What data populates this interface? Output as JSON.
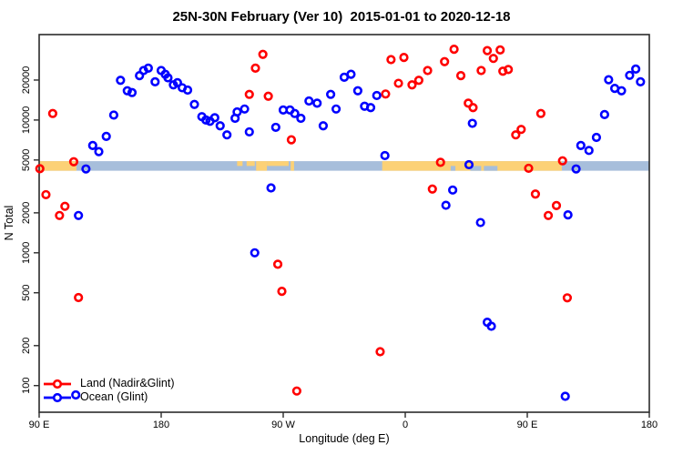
{
  "title": "25N-30N February (Ver 10)  2015-01-01 to 2020-12-18",
  "chart_data": {
    "type": "scatter",
    "title": "25N-30N February (Ver 10)  2015-01-01 to 2020-12-18",
    "x_axis": {
      "label": "Longitude (deg E)",
      "range": [
        90,
        540
      ],
      "ticks": [
        {
          "lon": 90,
          "label": "90 E"
        },
        {
          "lon": 180,
          "label": "180"
        },
        {
          "lon": 270,
          "label": "90 W"
        },
        {
          "lon": 360,
          "label": "0"
        },
        {
          "lon": 450,
          "label": "90 E"
        },
        {
          "lon": 540,
          "label": "180"
        }
      ]
    },
    "y_axis": {
      "label": "N Total",
      "scale": "log",
      "range": [
        63,
        44000
      ],
      "ticks": [
        {
          "value": 20000,
          "label": "20000"
        },
        {
          "value": 10000,
          "label": "10000"
        },
        {
          "value": 5000,
          "label": "5000"
        },
        {
          "value": 2000,
          "label": "2000"
        },
        {
          "value": 1000,
          "label": "1000"
        },
        {
          "value": 500,
          "label": "500"
        },
        {
          "value": 200,
          "label": "200"
        },
        {
          "value": 100,
          "label": "100"
        }
      ]
    },
    "legend": [
      {
        "name": "Land (Nadir&Glint)",
        "color": "#ff0000"
      },
      {
        "name": "Ocean (Glint)",
        "color": "#0000ff"
      }
    ],
    "map_band": {
      "description": "latitude-zone map strip drawn across the plot near N=4500",
      "top_value": 4900,
      "bottom_value": 4150,
      "ocean_color": "#a7bedb",
      "land_color": "#fcd176",
      "ocean_extent": [
        90,
        540
      ],
      "land_full": [
        [
          90,
          117.5
        ],
        [
          250,
          258
        ],
        [
          275.5,
          278
        ],
        [
          343,
          475.5
        ]
      ],
      "land_top_half": [
        [
          236,
          240
        ],
        [
          243,
          249
        ],
        [
          258,
          274
        ]
      ],
      "ocean_bottom_half_overlay": [
        [
          393.5,
          397
        ],
        [
          408,
          416
        ],
        [
          418,
          428
        ]
      ]
    },
    "series": [
      {
        "name": "Land (Nadir&Glint)",
        "color": "#ff0000",
        "points": [
          [
            100,
            11200
          ],
          [
            90.5,
            4300
          ],
          [
            115.5,
            4850
          ],
          [
            95,
            2740
          ],
          [
            109,
            2240
          ],
          [
            105,
            1910
          ],
          [
            119,
            460
          ],
          [
            255,
            31200
          ],
          [
            249.5,
            24600
          ],
          [
            245,
            15600
          ],
          [
            259,
            15100
          ],
          [
            276,
            7100
          ],
          [
            349.5,
            28500
          ],
          [
            359,
            29600
          ],
          [
            376.5,
            23600
          ],
          [
            370,
            19900
          ],
          [
            365,
            18400
          ],
          [
            355,
            18900
          ],
          [
            345.5,
            15700
          ],
          [
            389,
            27500
          ],
          [
            386,
            4800
          ],
          [
            380,
            3020
          ],
          [
            396,
            34100
          ],
          [
            420.5,
            33300
          ],
          [
            430,
            33700
          ],
          [
            425,
            29100
          ],
          [
            416,
            23600
          ],
          [
            401,
            21600
          ],
          [
            432,
            23300
          ],
          [
            436,
            24000
          ],
          [
            406.5,
            13400
          ],
          [
            410,
            12400
          ],
          [
            460,
            11200
          ],
          [
            445.5,
            8500
          ],
          [
            441.5,
            7730
          ],
          [
            476,
            4930
          ],
          [
            451,
            4330
          ],
          [
            456,
            2770
          ],
          [
            471.5,
            2270
          ],
          [
            465.5,
            1910
          ],
          [
            479.5,
            458
          ],
          [
            266,
            820
          ],
          [
            269,
            513
          ],
          [
            341.5,
            180
          ],
          [
            280,
            91
          ]
        ]
      },
      {
        "name": "Ocean (Glint)",
        "color": "#0000ff",
        "points": [
          [
            124.5,
            4280
          ],
          [
            119,
            1910
          ],
          [
            129.5,
            6430
          ],
          [
            134,
            5780
          ],
          [
            139.5,
            7530
          ],
          [
            145,
            10900
          ],
          [
            150,
            19900
          ],
          [
            155,
            16600
          ],
          [
            158.5,
            16100
          ],
          [
            164,
            21600
          ],
          [
            167,
            23600
          ],
          [
            170.5,
            24600
          ],
          [
            175.5,
            19400
          ],
          [
            180,
            23600
          ],
          [
            183,
            22100
          ],
          [
            185,
            20800
          ],
          [
            189,
            18400
          ],
          [
            192,
            19100
          ],
          [
            195.5,
            17500
          ],
          [
            199.5,
            16800
          ],
          [
            204.5,
            13100
          ],
          [
            210,
            10600
          ],
          [
            213,
            10000
          ],
          [
            216,
            9790
          ],
          [
            219.5,
            10400
          ],
          [
            223.5,
            9050
          ],
          [
            228.5,
            7730
          ],
          [
            234.5,
            10300
          ],
          [
            236,
            11500
          ],
          [
            241.5,
            12100
          ],
          [
            245,
            8140
          ],
          [
            249,
            1000
          ],
          [
            261,
            3080
          ],
          [
            264.5,
            8810
          ],
          [
            270,
            11900
          ],
          [
            275,
            11900
          ],
          [
            278.5,
            11200
          ],
          [
            283,
            10300
          ],
          [
            289,
            13900
          ],
          [
            295,
            13400
          ],
          [
            299.5,
            9050
          ],
          [
            305,
            15600
          ],
          [
            309,
            12100
          ],
          [
            315,
            21000
          ],
          [
            320,
            22100
          ],
          [
            325,
            16600
          ],
          [
            330,
            12700
          ],
          [
            334.5,
            12400
          ],
          [
            339,
            15300
          ],
          [
            345,
            5400
          ],
          [
            390,
            2280
          ],
          [
            395,
            2970
          ],
          [
            407,
            4610
          ],
          [
            409.5,
            9440
          ],
          [
            415.5,
            1690
          ],
          [
            420.5,
            300
          ],
          [
            423.5,
            280
          ],
          [
            117,
            85
          ],
          [
            478,
            83
          ],
          [
            480,
            1930
          ],
          [
            486,
            4280
          ],
          [
            489.5,
            6430
          ],
          [
            495.5,
            5900
          ],
          [
            501,
            7400
          ],
          [
            507,
            11000
          ],
          [
            510,
            20100
          ],
          [
            514.5,
            17300
          ],
          [
            519.5,
            16600
          ],
          [
            525.5,
            21700
          ],
          [
            530,
            24200
          ],
          [
            533.5,
            19400
          ]
        ]
      }
    ]
  }
}
